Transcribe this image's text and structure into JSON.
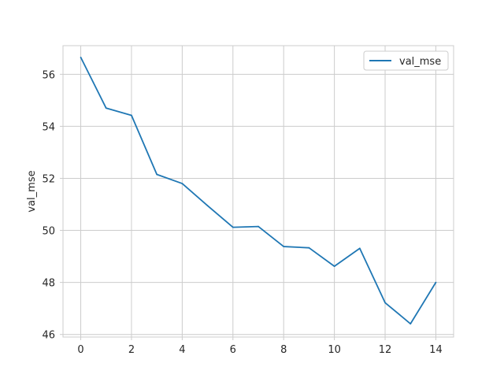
{
  "chart_data": {
    "type": "line",
    "xlabel": "",
    "ylabel": "val_mse",
    "xlim": [
      -0.7,
      14.7
    ],
    "ylim": [
      45.9,
      57.1
    ],
    "x_ticks": [
      0,
      2,
      4,
      6,
      8,
      10,
      12,
      14
    ],
    "y_ticks": [
      46,
      48,
      50,
      52,
      54,
      56
    ],
    "grid": true,
    "legend_position": "top-right",
    "series": [
      {
        "name": "val_mse",
        "color": "#1f77b4",
        "x": [
          0,
          1,
          2,
          3,
          4,
          5,
          6,
          7,
          8,
          9,
          10,
          11,
          12,
          13,
          14
        ],
        "y": [
          56.65,
          54.7,
          54.42,
          52.15,
          51.8,
          50.95,
          50.12,
          50.15,
          49.38,
          49.33,
          48.62,
          49.31,
          47.22,
          46.41,
          48.0
        ]
      }
    ]
  }
}
